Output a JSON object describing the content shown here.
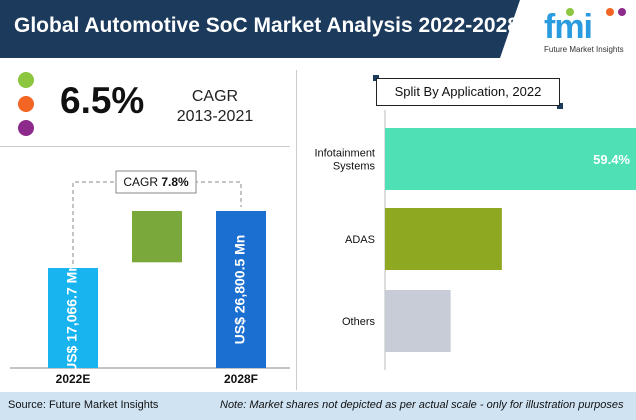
{
  "header": {
    "title": "Global Automotive SoC Market Analysis 2022-2028"
  },
  "logo": {
    "wordmark": "fmi",
    "tagline": "Future Market Insights"
  },
  "colors": {
    "header_bg": "#1b3a5c",
    "accent_blue": "#2b9be0",
    "green": "#8dc63f",
    "orange": "#f26522",
    "purple": "#8e2a8c"
  },
  "kpi": {
    "cagr_value": "6.5%",
    "cagr_label": "CAGR",
    "cagr_period": "2013-2021",
    "dots": [
      "#8dc63f",
      "#f26522",
      "#8e2a8c"
    ]
  },
  "chart_data": [
    {
      "type": "bar",
      "categories": [
        "2022E",
        "2028F"
      ],
      "values": [
        17066.7,
        26800.5
      ],
      "value_labels": [
        "US$ 17,066.7 Mn",
        "US$ 26,800.5 Mn"
      ],
      "annotation": {
        "label": "CAGR",
        "value": "7.8%"
      },
      "bar_colors": [
        "#17b4ef",
        "#1b6fd0"
      ],
      "increment_color": "#7aa83a"
    },
    {
      "type": "bar",
      "orientation": "horizontal",
      "title": "Split By Application, 2022",
      "categories": [
        "Infotainment Systems",
        "ADAS",
        "Others"
      ],
      "category_lines": [
        [
          "Infotainment",
          "Systems"
        ],
        [
          "ADAS"
        ],
        [
          "Others"
        ]
      ],
      "values": [
        59.4,
        26,
        14.6
      ],
      "data_labels": [
        "59.4%",
        "",
        ""
      ],
      "bar_colors": [
        "#4fe0b6",
        "#8fa822",
        "#c7ccd6"
      ]
    }
  ],
  "footer": {
    "source": "Source: Future Market Insights",
    "note": "Note: Market shares not depicted as per actual scale - only for illustration purposes"
  }
}
